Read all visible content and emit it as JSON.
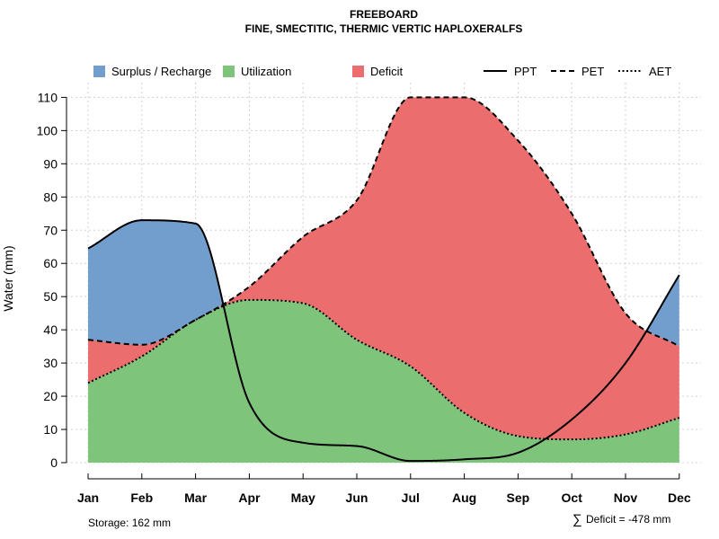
{
  "chart_data": {
    "type": "area",
    "title": "FREEBOARD",
    "subtitle": "FINE, SMECTITIC, THERMIC VERTIC HAPLOXERALFS",
    "ylabel": "Water (mm)",
    "xlabel": "",
    "ylim": [
      0,
      115
    ],
    "yticks": [
      0,
      10,
      20,
      30,
      40,
      50,
      60,
      70,
      80,
      90,
      100,
      110
    ],
    "grid": true,
    "categories": [
      "Jan",
      "Feb",
      "Mar",
      "Apr",
      "May",
      "Jun",
      "Jul",
      "Aug",
      "Sep",
      "Oct",
      "Nov",
      "Dec"
    ],
    "series": [
      {
        "name": "PPT",
        "style": "solid",
        "values": [
          64.5,
          73,
          72,
          18,
          6,
          5,
          0.5,
          1,
          3,
          13,
          30,
          56.5
        ]
      },
      {
        "name": "PET",
        "style": "dashed",
        "values": [
          37,
          35.5,
          43,
          53,
          68,
          79,
          110,
          110,
          97,
          75,
          45,
          35
        ]
      },
      {
        "name": "AET",
        "style": "dotted",
        "values": [
          24,
          32,
          43,
          49,
          48,
          37,
          29,
          15,
          8,
          7,
          8.5,
          13.5
        ]
      }
    ],
    "fills": [
      {
        "name": "Surplus / Recharge",
        "color": "#729ECE"
      },
      {
        "name": "Utilization",
        "color": "#7EC47B"
      },
      {
        "name": "Deficit",
        "color": "#EB6D6E"
      }
    ],
    "legend_position": "top",
    "annotations": {
      "storage": "Storage: 162 mm",
      "deficit_symbol": "∑",
      "deficit": "Deficit = -478 mm"
    }
  }
}
